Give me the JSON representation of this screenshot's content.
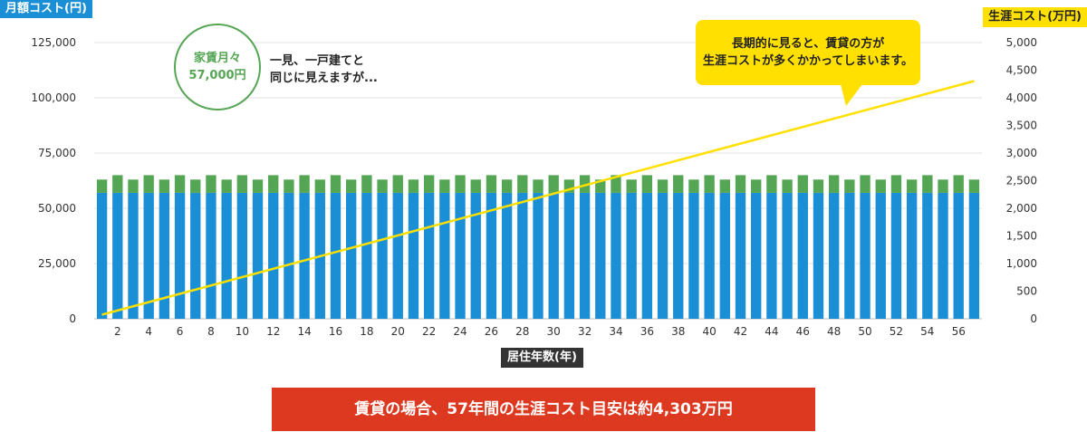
{
  "axis_titles": {
    "left": "月額コスト(円)",
    "right": "生涯コスト(万円)",
    "x": "居住年数(年)"
  },
  "annotations": {
    "rent_bubble_line1": "家賃月々",
    "rent_bubble_line2": "57,000円",
    "note_line1": "一見、一戸建てと",
    "note_line2": "同じに見えますが...",
    "callout_line1": "長期的に見ると、賃貸の方が",
    "callout_line2": "生涯コストが多くかかってしまいます。"
  },
  "banner": "賃貸の場合、57年間の生涯コスト目安は約4,303万円",
  "colors": {
    "rent": "#1b8fd6",
    "extra": "#55a654",
    "lifetime_line": "#ffe000",
    "grid": "#e3e3e3"
  },
  "chart_data": {
    "type": "bar",
    "stacked": true,
    "x_start": 1,
    "x_end": 57,
    "x_ticks": [
      2,
      4,
      6,
      8,
      10,
      12,
      14,
      16,
      18,
      20,
      22,
      24,
      26,
      28,
      30,
      32,
      34,
      36,
      38,
      40,
      42,
      44,
      46,
      48,
      50,
      52,
      54,
      56
    ],
    "y_left": {
      "min": 0,
      "max": 125000,
      "ticks": [
        "0",
        "25,000",
        "50,000",
        "75,000",
        "100,000",
        "125,000"
      ],
      "tick_values": [
        0,
        25000,
        50000,
        75000,
        100000,
        125000
      ]
    },
    "y_right": {
      "min": 0,
      "max": 5000,
      "ticks": [
        "0",
        "500",
        "1,000",
        "1,500",
        "2,000",
        "2,500",
        "3,000",
        "3,500",
        "4,000",
        "4,500",
        "5,000"
      ],
      "tick_values": [
        0,
        500,
        1000,
        1500,
        2000,
        2500,
        3000,
        3500,
        4000,
        4500,
        5000
      ]
    },
    "series": [
      {
        "stack_part": "rent",
        "values_pattern": {
          "odd_years": 57000,
          "even_years": 57000
        }
      },
      {
        "stack_part": "extra",
        "values_pattern": {
          "odd_years": 6000,
          "even_years": 8000
        }
      }
    ],
    "line_series": {
      "axis": "right",
      "start_value": 75,
      "end_value": 4303
    },
    "gridlines": true
  }
}
